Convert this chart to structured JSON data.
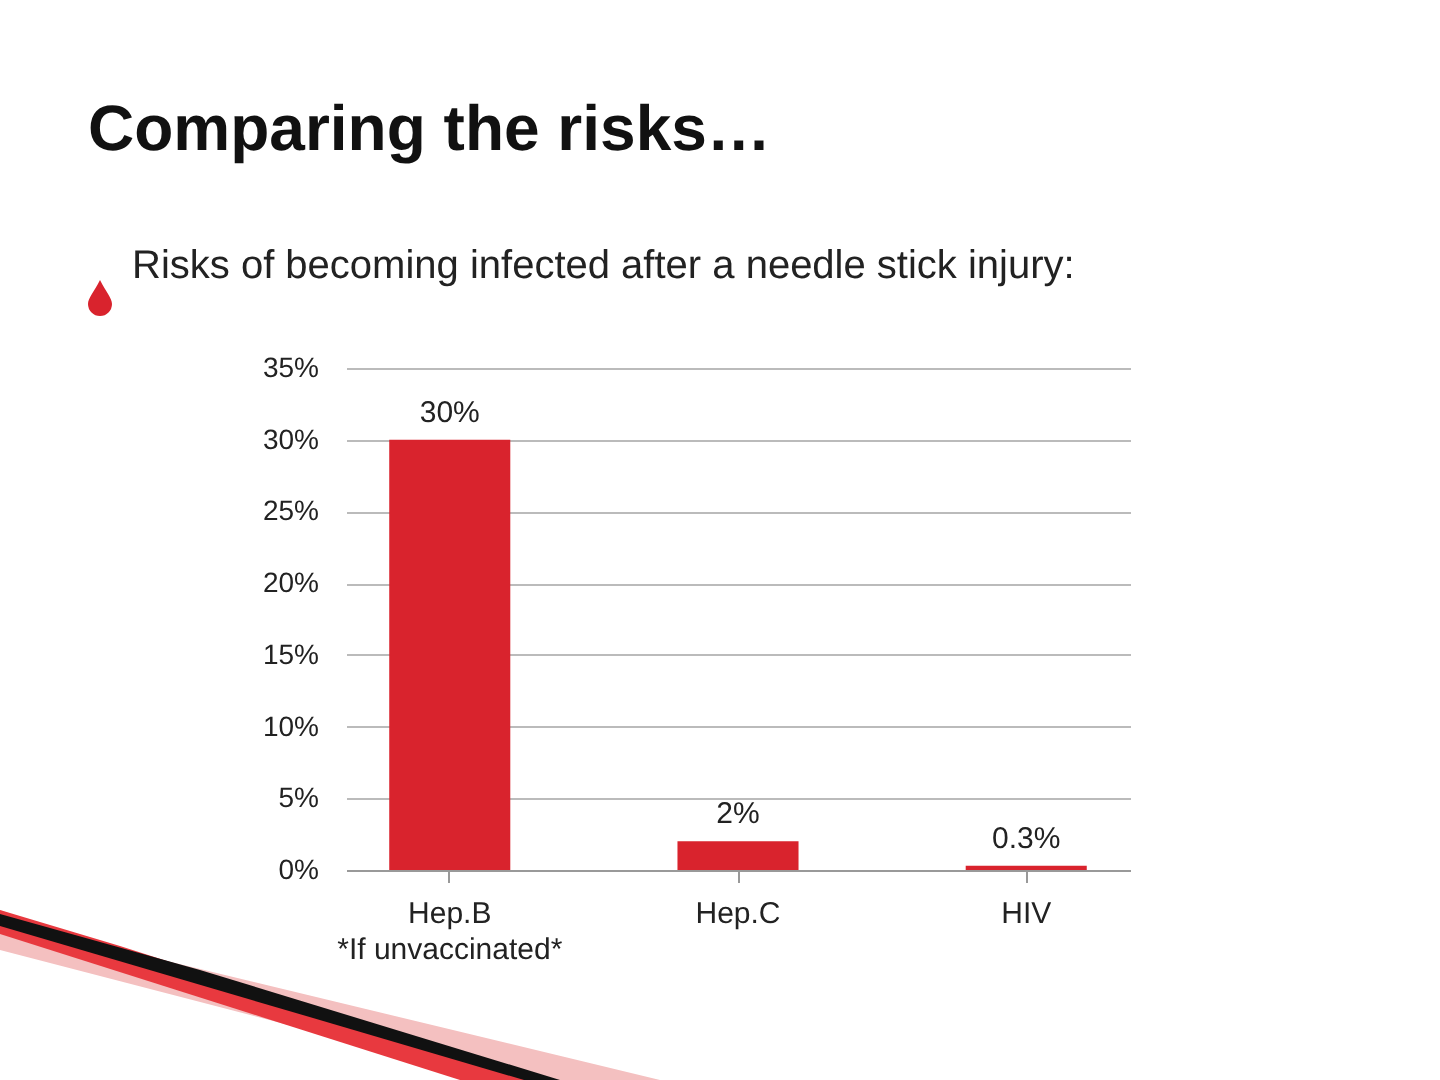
{
  "chart_data": {
    "type": "bar",
    "title": "Comparing the risks…",
    "subtitle": "Risks of becoming infected after a needle stick injury:",
    "categories": [
      "Hep.B\n*If unvaccinated*",
      "Hep.C",
      "HIV"
    ],
    "values": [
      30,
      2,
      0.3
    ],
    "value_labels": [
      "30%",
      "2%",
      "0.3%"
    ],
    "color": "#d9232d",
    "ylim": [
      0,
      35
    ],
    "yticks": [
      {
        "value": 0,
        "label": "0%"
      },
      {
        "value": 5,
        "label": "5%"
      },
      {
        "value": 10,
        "label": "10%"
      },
      {
        "value": 15,
        "label": "15%"
      },
      {
        "value": 20,
        "label": "20%"
      },
      {
        "value": 25,
        "label": "25%"
      },
      {
        "value": 30,
        "label": "30%"
      },
      {
        "value": 35,
        "label": "35%"
      }
    ],
    "grid": "y"
  }
}
